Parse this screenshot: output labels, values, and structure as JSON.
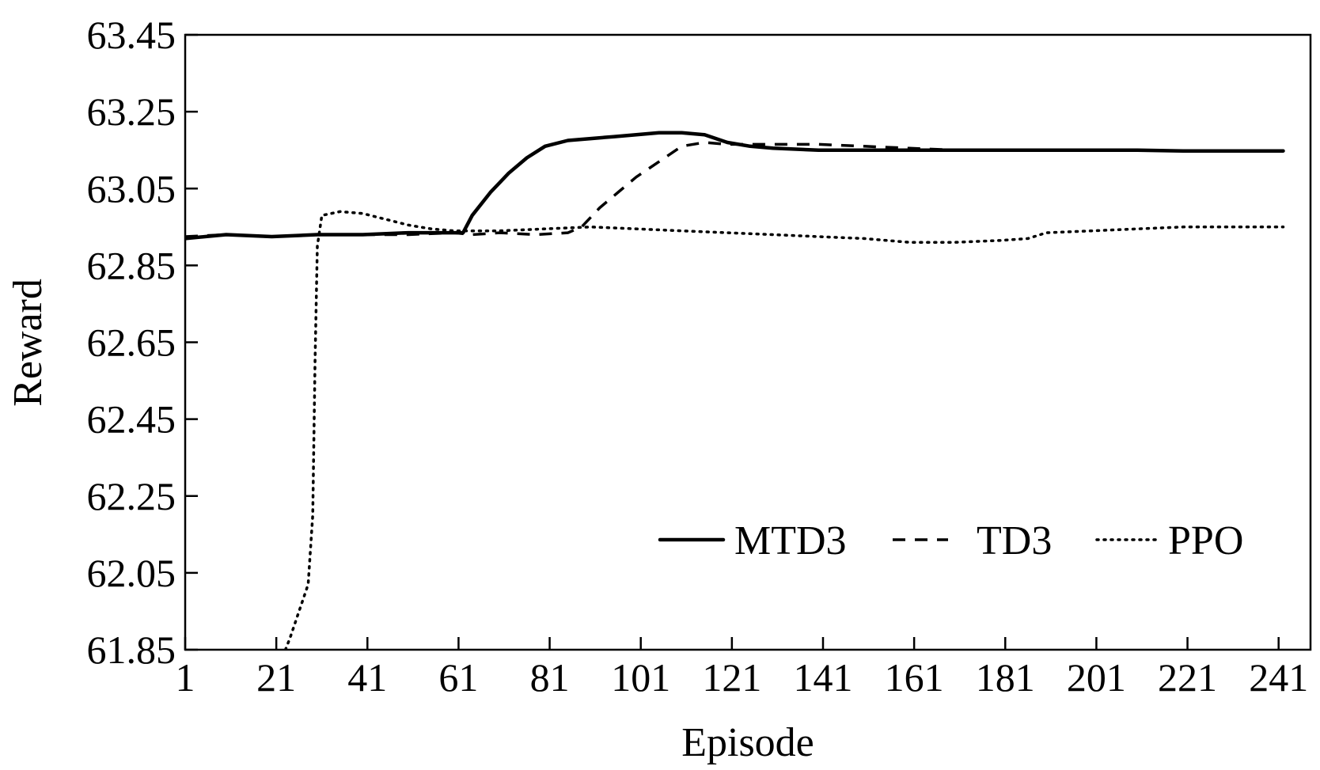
{
  "chart_data": {
    "type": "line",
    "title": "",
    "xlabel": "Episode",
    "ylabel": "Reward",
    "xlim": [
      1,
      248
    ],
    "ylim": [
      61.85,
      63.45
    ],
    "x_ticks": [
      "1",
      "21",
      "41",
      "61",
      "81",
      "101",
      "121",
      "141",
      "161",
      "181",
      "201",
      "221",
      "241"
    ],
    "y_ticks": [
      "63.45",
      "63.25",
      "63.05",
      "62.85",
      "62.65",
      "62.45",
      "62.25",
      "62.05",
      "61.85"
    ],
    "x_tick_values": [
      1,
      21,
      41,
      61,
      81,
      101,
      121,
      141,
      161,
      181,
      201,
      221,
      241
    ],
    "y_tick_values": [
      63.45,
      63.25,
      63.05,
      62.85,
      62.65,
      62.45,
      62.25,
      62.05,
      61.85
    ],
    "grid": false,
    "legend": {
      "position": "bottom-right",
      "orientation": "horizontal"
    },
    "series": [
      {
        "name": "MTD3",
        "style": "solid",
        "color": "#000000",
        "points": [
          [
            1,
            62.92
          ],
          [
            10,
            62.93
          ],
          [
            20,
            62.925
          ],
          [
            30,
            62.93
          ],
          [
            40,
            62.93
          ],
          [
            50,
            62.935
          ],
          [
            62,
            62.935
          ],
          [
            64,
            62.98
          ],
          [
            68,
            63.04
          ],
          [
            72,
            63.09
          ],
          [
            76,
            63.13
          ],
          [
            80,
            63.16
          ],
          [
            85,
            63.175
          ],
          [
            90,
            63.18
          ],
          [
            95,
            63.185
          ],
          [
            100,
            63.19
          ],
          [
            105,
            63.195
          ],
          [
            110,
            63.195
          ],
          [
            115,
            63.19
          ],
          [
            120,
            63.17
          ],
          [
            125,
            63.16
          ],
          [
            130,
            63.155
          ],
          [
            140,
            63.15
          ],
          [
            150,
            63.15
          ],
          [
            160,
            63.15
          ],
          [
            170,
            63.15
          ],
          [
            180,
            63.15
          ],
          [
            190,
            63.15
          ],
          [
            200,
            63.15
          ],
          [
            210,
            63.15
          ],
          [
            220,
            63.148
          ],
          [
            230,
            63.148
          ],
          [
            242,
            63.148
          ]
        ]
      },
      {
        "name": "TD3",
        "style": "dashed",
        "color": "#000000",
        "points": [
          [
            1,
            62.925
          ],
          [
            10,
            62.93
          ],
          [
            20,
            62.925
          ],
          [
            30,
            62.93
          ],
          [
            40,
            62.93
          ],
          [
            50,
            62.93
          ],
          [
            60,
            62.935
          ],
          [
            64,
            62.93
          ],
          [
            70,
            62.935
          ],
          [
            78,
            62.93
          ],
          [
            85,
            62.935
          ],
          [
            88,
            62.95
          ],
          [
            92,
            63.0
          ],
          [
            96,
            63.04
          ],
          [
            100,
            63.08
          ],
          [
            105,
            63.12
          ],
          [
            110,
            63.16
          ],
          [
            115,
            63.17
          ],
          [
            120,
            63.165
          ],
          [
            130,
            63.165
          ],
          [
            140,
            63.165
          ],
          [
            150,
            63.16
          ],
          [
            160,
            63.155
          ],
          [
            170,
            63.15
          ],
          [
            180,
            63.15
          ],
          [
            190,
            63.15
          ],
          [
            200,
            63.15
          ],
          [
            210,
            63.15
          ],
          [
            220,
            63.148
          ],
          [
            230,
            63.148
          ],
          [
            242,
            63.148
          ]
        ]
      },
      {
        "name": "PPO",
        "style": "dotted",
        "color": "#000000",
        "points": [
          [
            23,
            61.85
          ],
          [
            24,
            61.88
          ],
          [
            26,
            61.95
          ],
          [
            28,
            62.02
          ],
          [
            29,
            62.2
          ],
          [
            29.5,
            62.6
          ],
          [
            30,
            62.9
          ],
          [
            31,
            62.98
          ],
          [
            35,
            62.99
          ],
          [
            40,
            62.985
          ],
          [
            45,
            62.97
          ],
          [
            50,
            62.955
          ],
          [
            55,
            62.945
          ],
          [
            60,
            62.94
          ],
          [
            70,
            62.94
          ],
          [
            80,
            62.945
          ],
          [
            90,
            62.95
          ],
          [
            100,
            62.945
          ],
          [
            110,
            62.94
          ],
          [
            120,
            62.935
          ],
          [
            130,
            62.93
          ],
          [
            140,
            62.925
          ],
          [
            150,
            62.92
          ],
          [
            160,
            62.91
          ],
          [
            170,
            62.91
          ],
          [
            180,
            62.915
          ],
          [
            186,
            62.92
          ],
          [
            190,
            62.935
          ],
          [
            200,
            62.94
          ],
          [
            210,
            62.945
          ],
          [
            220,
            62.95
          ],
          [
            230,
            62.95
          ],
          [
            242,
            62.95
          ]
        ]
      }
    ]
  }
}
